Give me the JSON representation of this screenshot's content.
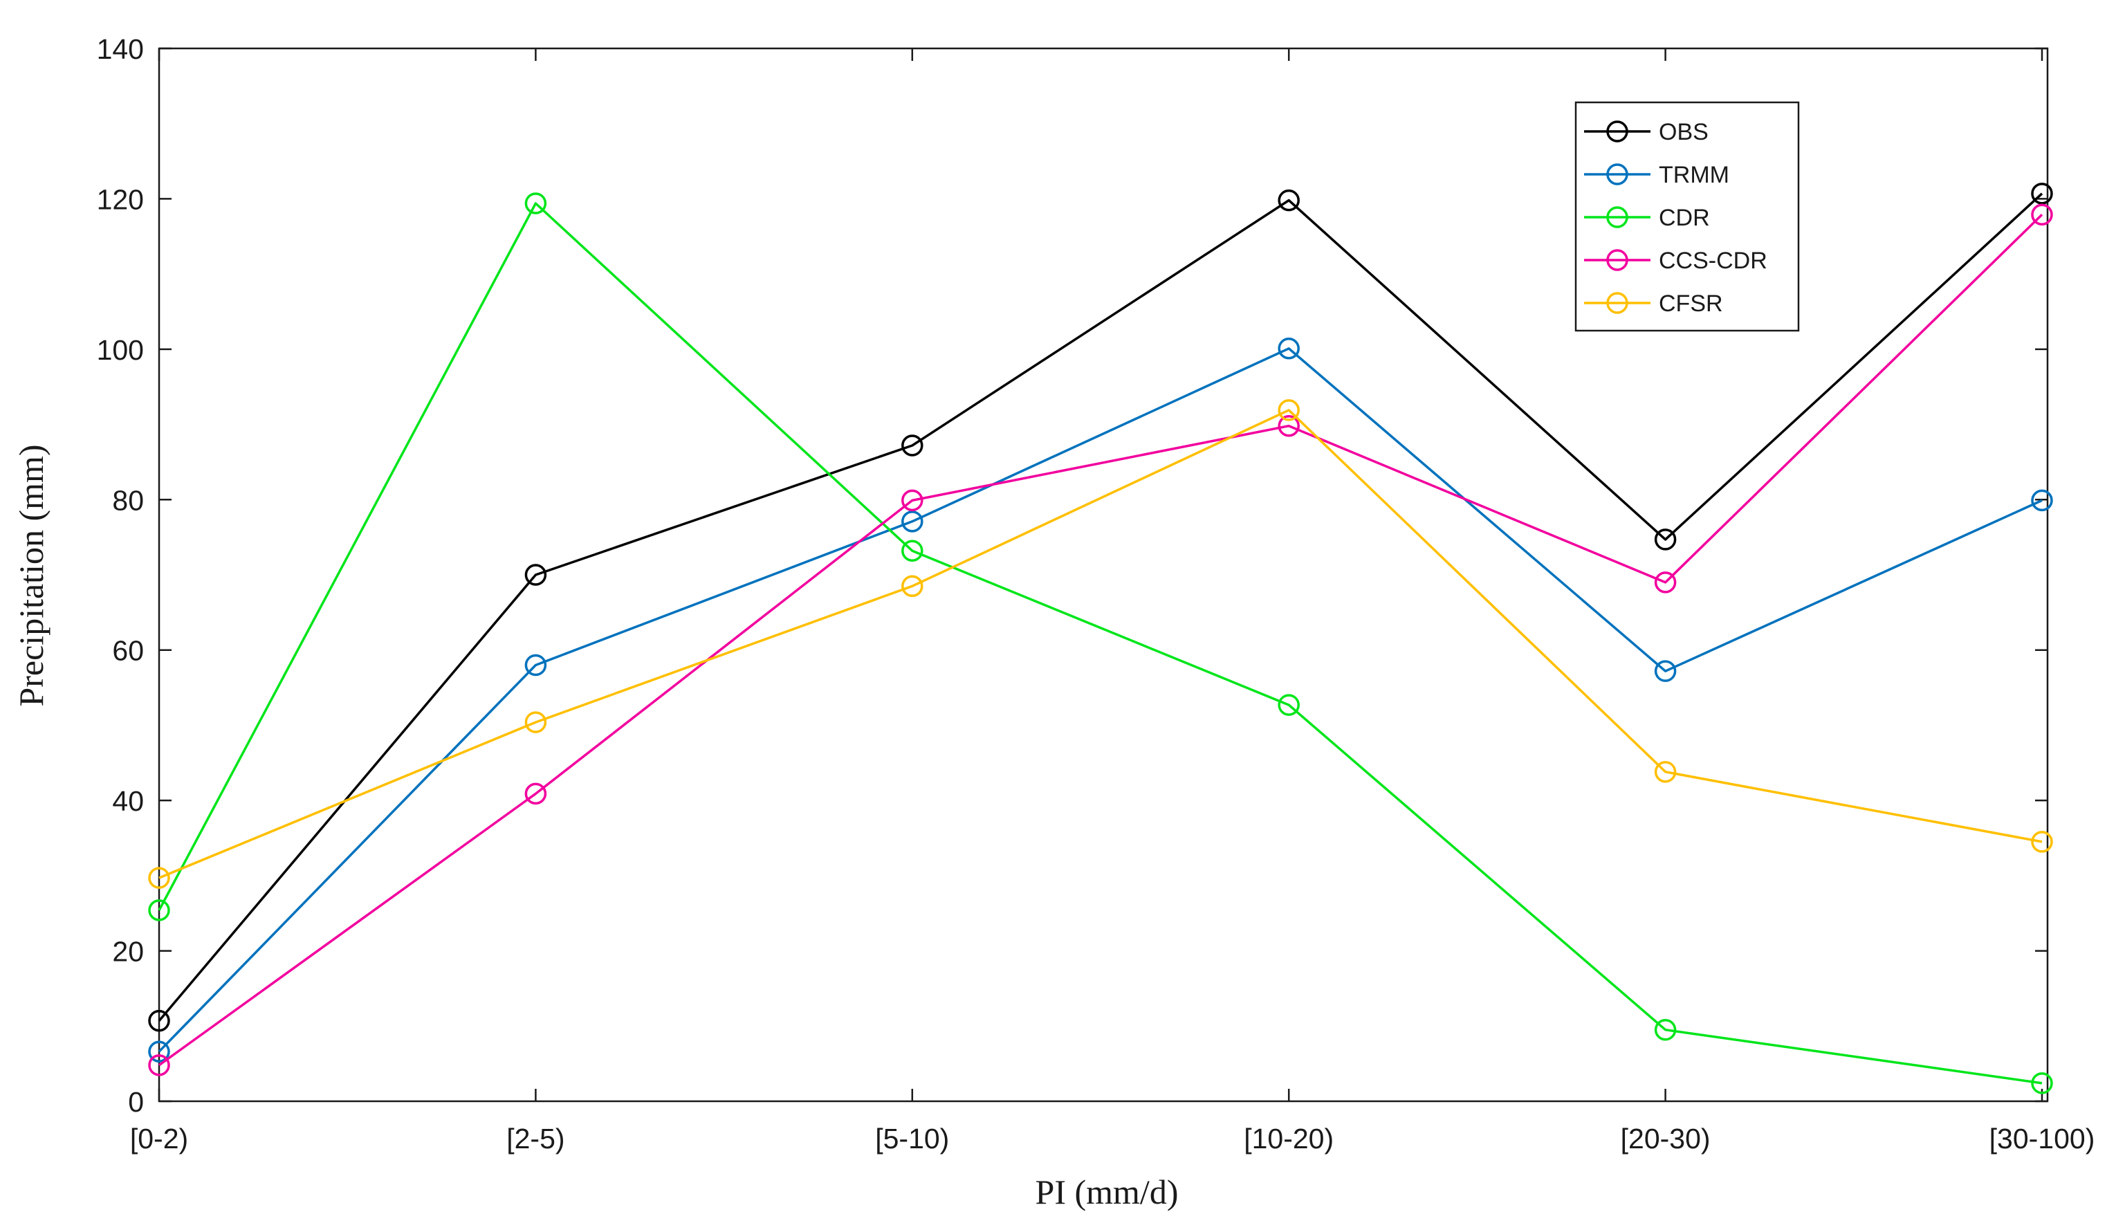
{
  "chart_data": {
    "type": "line",
    "title": "",
    "xlabel": "PI (mm/d)",
    "ylabel": "Precipitation (mm)",
    "categories": [
      "[0-2)",
      "[2-5)",
      "[5-10)",
      "[10-20)",
      "[20-30)",
      "[30-100)"
    ],
    "ylim": [
      0,
      140
    ],
    "yticks": [
      0,
      20,
      40,
      60,
      80,
      100,
      120,
      140
    ],
    "grid": false,
    "legend_position": "top-right",
    "series": [
      {
        "name": "OBS",
        "color": "#000000",
        "values": [
          10.7,
          70.0,
          87.2,
          119.8,
          74.7,
          120.7
        ]
      },
      {
        "name": "TRMM",
        "color": "#0072BD",
        "values": [
          6.6,
          58.0,
          77.1,
          100.1,
          57.2,
          79.9
        ]
      },
      {
        "name": "CDR",
        "color": "#00E51A",
        "values": [
          25.4,
          119.4,
          73.2,
          52.7,
          9.5,
          2.4
        ]
      },
      {
        "name": "CCS-CDR",
        "color": "#F2009E",
        "values": [
          4.8,
          40.9,
          79.9,
          89.8,
          69.0,
          117.9
        ]
      },
      {
        "name": "CFSR",
        "color": "#FFBF00",
        "values": [
          29.7,
          50.4,
          68.5,
          91.9,
          43.8,
          34.5
        ]
      }
    ]
  }
}
